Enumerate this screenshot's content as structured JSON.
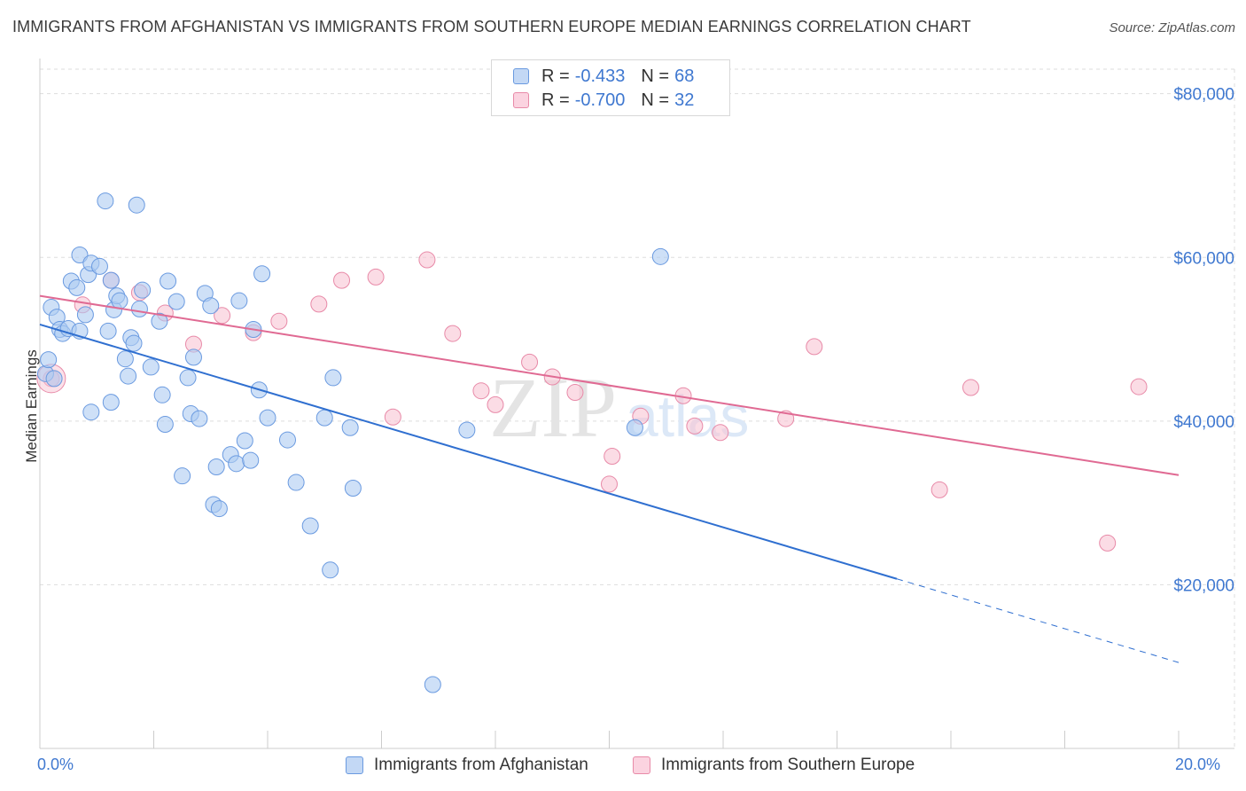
{
  "title": "IMMIGRANTS FROM AFGHANISTAN VS IMMIGRANTS FROM SOUTHERN EUROPE MEDIAN EARNINGS CORRELATION CHART",
  "source": "Source: ZipAtlas.com",
  "watermark": {
    "zip": "ZIP",
    "atlas": "atlas"
  },
  "legend": {
    "rows": [
      {
        "r_label": "R =",
        "r_value": "-0.433",
        "n_label": "N =",
        "n_value": "68"
      },
      {
        "r_label": "R =",
        "r_value": "-0.700",
        "n_label": "N =",
        "n_value": "32"
      }
    ]
  },
  "colors": {
    "blue_fill": "#aecbf2",
    "blue_stroke": "#6a9ae0",
    "blue_line": "#2f6fd0",
    "pink_fill": "#f8c4d4",
    "pink_stroke": "#e88aa8",
    "pink_line": "#e06a93",
    "axis_text": "#3f78d0",
    "grid": "#dddddd"
  },
  "chart_data": {
    "type": "scatter",
    "title": "IMMIGRANTS FROM AFGHANISTAN VS IMMIGRANTS FROM SOUTHERN EUROPE MEDIAN EARNINGS CORRELATION CHART",
    "xlabel": "",
    "ylabel": "Median Earnings",
    "xlim": [
      0,
      20
    ],
    "ylim": [
      0,
      83000
    ],
    "x_tick_labels": [
      "0.0%",
      "20.0%"
    ],
    "y_ticks": [
      20000,
      40000,
      60000,
      80000
    ],
    "y_tick_labels": [
      "$20,000",
      "$40,000",
      "$60,000",
      "$80,000"
    ],
    "grid": true,
    "legend_position": "top-center",
    "series": [
      {
        "name": "Immigrants from Afghanistan",
        "r": -0.433,
        "n": 68,
        "trend": {
          "x0": 0,
          "y0": 51800,
          "x1": 20,
          "y1": 10500,
          "solid_until_x": 15.05
        },
        "points": [
          [
            0.1,
            45800
          ],
          [
            0.15,
            47500
          ],
          [
            0.2,
            53900
          ],
          [
            0.25,
            45200
          ],
          [
            0.3,
            52700
          ],
          [
            0.35,
            51200
          ],
          [
            0.4,
            50700
          ],
          [
            0.5,
            51300
          ],
          [
            0.55,
            57100
          ],
          [
            0.65,
            56300
          ],
          [
            0.7,
            51000
          ],
          [
            0.7,
            60300
          ],
          [
            0.8,
            53000
          ],
          [
            0.85,
            57900
          ],
          [
            0.9,
            41100
          ],
          [
            0.9,
            59300
          ],
          [
            1.05,
            58900
          ],
          [
            1.15,
            66900
          ],
          [
            1.2,
            51000
          ],
          [
            1.25,
            42300
          ],
          [
            1.3,
            53600
          ],
          [
            1.35,
            55300
          ],
          [
            1.4,
            54700
          ],
          [
            1.5,
            47600
          ],
          [
            1.55,
            45500
          ],
          [
            1.6,
            50200
          ],
          [
            1.65,
            49500
          ],
          [
            1.7,
            66400
          ],
          [
            1.75,
            53700
          ],
          [
            1.8,
            56000
          ],
          [
            1.95,
            46600
          ],
          [
            2.1,
            52200
          ],
          [
            2.15,
            43200
          ],
          [
            2.2,
            39600
          ],
          [
            2.25,
            57100
          ],
          [
            2.4,
            54600
          ],
          [
            2.5,
            33300
          ],
          [
            2.6,
            45300
          ],
          [
            2.65,
            40900
          ],
          [
            2.7,
            47800
          ],
          [
            2.8,
            40300
          ],
          [
            2.9,
            55600
          ],
          [
            3.0,
            54100
          ],
          [
            3.05,
            29800
          ],
          [
            3.1,
            34400
          ],
          [
            3.15,
            29300
          ],
          [
            3.35,
            35900
          ],
          [
            3.45,
            34800
          ],
          [
            3.5,
            54700
          ],
          [
            3.6,
            37600
          ],
          [
            3.7,
            35200
          ],
          [
            3.75,
            51200
          ],
          [
            3.85,
            43800
          ],
          [
            3.9,
            58000
          ],
          [
            4.0,
            40400
          ],
          [
            4.35,
            37700
          ],
          [
            4.5,
            32500
          ],
          [
            4.75,
            27200
          ],
          [
            5.0,
            40400
          ],
          [
            5.1,
            21800
          ],
          [
            5.15,
            45300
          ],
          [
            5.45,
            39200
          ],
          [
            5.5,
            31800
          ],
          [
            6.9,
            7800
          ],
          [
            7.5,
            38900
          ],
          [
            10.45,
            39200
          ],
          [
            10.9,
            60100
          ],
          [
            1.25,
            57200
          ]
        ]
      },
      {
        "name": "Immigrants from Southern Europe",
        "r": -0.7,
        "n": 32,
        "trend": {
          "x0": 0,
          "y0": 55300,
          "x1": 20,
          "y1": 33400
        },
        "points": [
          [
            0.2,
            45200
          ],
          [
            0.75,
            54200
          ],
          [
            1.25,
            57200
          ],
          [
            1.75,
            55700
          ],
          [
            2.2,
            53200
          ],
          [
            2.7,
            49400
          ],
          [
            3.2,
            52900
          ],
          [
            3.75,
            50800
          ],
          [
            4.2,
            52200
          ],
          [
            4.9,
            54300
          ],
          [
            5.3,
            57200
          ],
          [
            5.9,
            57600
          ],
          [
            6.2,
            40500
          ],
          [
            6.8,
            59700
          ],
          [
            7.25,
            50700
          ],
          [
            7.75,
            43700
          ],
          [
            8.0,
            42000
          ],
          [
            8.6,
            47200
          ],
          [
            9.0,
            45400
          ],
          [
            9.4,
            43500
          ],
          [
            10.05,
            35700
          ],
          [
            10.55,
            40600
          ],
          [
            11.3,
            43100
          ],
          [
            11.5,
            39400
          ],
          [
            11.95,
            38600
          ],
          [
            13.1,
            40300
          ],
          [
            13.6,
            49100
          ],
          [
            15.8,
            31600
          ],
          [
            16.35,
            44100
          ],
          [
            18.75,
            25100
          ],
          [
            19.3,
            44200
          ],
          [
            10.0,
            32300
          ]
        ]
      }
    ]
  },
  "bottom_legend": {
    "afghanistan": "Immigrants from Afghanistan",
    "southern_europe": "Immigrants from Southern Europe"
  },
  "x_axis": {
    "min_label": "0.0%",
    "max_label": "20.0%"
  }
}
